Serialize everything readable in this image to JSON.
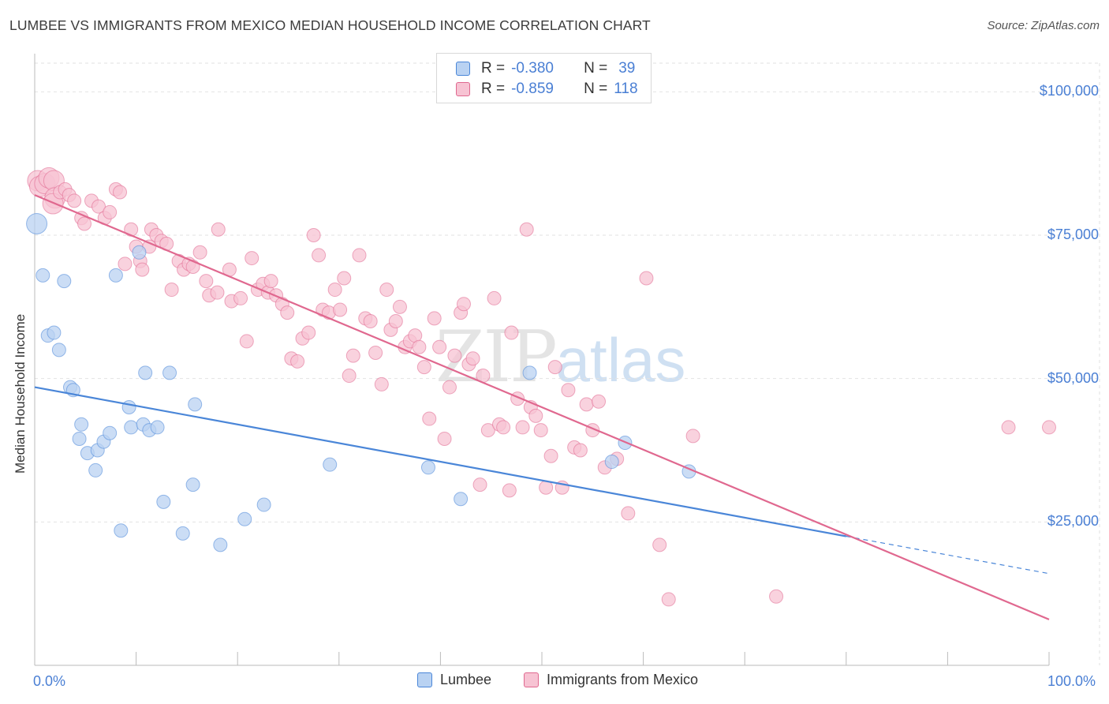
{
  "title": "LUMBEE VS IMMIGRANTS FROM MEXICO MEDIAN HOUSEHOLD INCOME CORRELATION CHART",
  "source": "Source: ZipAtlas.com",
  "watermark": {
    "zip": "ZIP",
    "atlas": "atlas"
  },
  "colors": {
    "lumbee": "#4a86d8",
    "lumbee_fill": "#b9d2f2",
    "mexico": "#e0688f",
    "mexico_fill": "#f7c3d3",
    "tick_text": "#4a7fd4"
  },
  "legend": {
    "rows": [
      {
        "r_label": "R =",
        "r_value": "-0.380",
        "n_label": "N =",
        "n_value": "39"
      },
      {
        "r_label": "R =",
        "r_value": "-0.859",
        "n_label": "N =",
        "n_value": "118"
      }
    ]
  },
  "bottom_legend": [
    "Lumbee",
    "Immigrants from Mexico"
  ],
  "chart_data": {
    "type": "scatter",
    "title": "LUMBEE VS IMMIGRANTS FROM MEXICO MEDIAN HOUSEHOLD INCOME CORRELATION CHART",
    "xlabel": "",
    "ylabel": "Median Household Income",
    "xlim": [
      0,
      100
    ],
    "ylim": [
      0,
      105000
    ],
    "x_tick_labels": [
      "0.0%",
      "100.0%"
    ],
    "y_ticks": [
      25000,
      50000,
      75000,
      100000
    ],
    "y_tick_labels": [
      "$25,000",
      "$50,000",
      "$75,000",
      "$100,000"
    ],
    "grid": true,
    "legend_position": "top-center",
    "series": [
      {
        "name": "Lumbee",
        "points": [
          [
            0.2,
            77000
          ],
          [
            0.8,
            68000
          ],
          [
            2.9,
            67000
          ],
          [
            1.3,
            57500
          ],
          [
            1.9,
            58000
          ],
          [
            2.4,
            55000
          ],
          [
            3.5,
            48500
          ],
          [
            3.8,
            48000
          ],
          [
            4.6,
            42000
          ],
          [
            4.4,
            39500
          ],
          [
            5.2,
            37000
          ],
          [
            6.2,
            37500
          ],
          [
            6.0,
            34000
          ],
          [
            6.8,
            39000
          ],
          [
            7.4,
            40500
          ],
          [
            8.0,
            68000
          ],
          [
            8.5,
            23500
          ],
          [
            9.3,
            45000
          ],
          [
            9.5,
            41500
          ],
          [
            10.3,
            72000
          ],
          [
            10.9,
            51000
          ],
          [
            10.7,
            42000
          ],
          [
            11.3,
            41000
          ],
          [
            12.1,
            41500
          ],
          [
            12.7,
            28500
          ],
          [
            13.3,
            51000
          ],
          [
            14.6,
            23000
          ],
          [
            15.8,
            45500
          ],
          [
            15.6,
            31500
          ],
          [
            18.3,
            21000
          ],
          [
            20.7,
            25500
          ],
          [
            22.6,
            28000
          ],
          [
            29.1,
            35000
          ],
          [
            38.8,
            34500
          ],
          [
            42.0,
            29000
          ],
          [
            48.8,
            51000
          ],
          [
            56.9,
            35500
          ],
          [
            58.2,
            38800
          ],
          [
            64.5,
            33800
          ]
        ]
      },
      {
        "name": "Immigrants from Mexico",
        "points": [
          [
            0.3,
            84500
          ],
          [
            0.5,
            83500
          ],
          [
            1.0,
            84000
          ],
          [
            1.4,
            85000
          ],
          [
            1.9,
            84500
          ],
          [
            2.0,
            81500
          ],
          [
            1.8,
            80500
          ],
          [
            2.5,
            82500
          ],
          [
            3.0,
            83000
          ],
          [
            3.4,
            82000
          ],
          [
            3.9,
            81000
          ],
          [
            4.6,
            78000
          ],
          [
            4.9,
            77000
          ],
          [
            5.6,
            81000
          ],
          [
            6.3,
            80000
          ],
          [
            6.9,
            78000
          ],
          [
            7.4,
            79000
          ],
          [
            8.0,
            83000
          ],
          [
            8.4,
            82500
          ],
          [
            8.9,
            70000
          ],
          [
            9.5,
            76000
          ],
          [
            10.0,
            73000
          ],
          [
            10.4,
            70500
          ],
          [
            10.6,
            69000
          ],
          [
            11.3,
            73000
          ],
          [
            11.5,
            76000
          ],
          [
            12.0,
            75000
          ],
          [
            12.5,
            74000
          ],
          [
            13.0,
            73500
          ],
          [
            13.5,
            65500
          ],
          [
            14.2,
            70500
          ],
          [
            14.7,
            69000
          ],
          [
            15.2,
            70000
          ],
          [
            15.6,
            69500
          ],
          [
            16.3,
            72000
          ],
          [
            16.9,
            67000
          ],
          [
            17.2,
            64500
          ],
          [
            18.0,
            65000
          ],
          [
            18.1,
            76000
          ],
          [
            19.2,
            69000
          ],
          [
            19.4,
            63500
          ],
          [
            20.3,
            64000
          ],
          [
            20.9,
            56500
          ],
          [
            21.4,
            71000
          ],
          [
            22.0,
            65500
          ],
          [
            22.5,
            66500
          ],
          [
            23.0,
            65000
          ],
          [
            23.3,
            67000
          ],
          [
            23.8,
            64500
          ],
          [
            24.4,
            63000
          ],
          [
            24.9,
            61500
          ],
          [
            25.3,
            53500
          ],
          [
            25.9,
            53000
          ],
          [
            26.4,
            57000
          ],
          [
            27.0,
            58000
          ],
          [
            27.5,
            75000
          ],
          [
            28.0,
            71500
          ],
          [
            28.4,
            62000
          ],
          [
            29.0,
            61500
          ],
          [
            29.6,
            65500
          ],
          [
            30.1,
            62000
          ],
          [
            30.5,
            67500
          ],
          [
            31.0,
            50500
          ],
          [
            31.4,
            54000
          ],
          [
            32.0,
            71500
          ],
          [
            32.6,
            60500
          ],
          [
            33.1,
            60000
          ],
          [
            33.6,
            54500
          ],
          [
            34.2,
            49000
          ],
          [
            34.7,
            65500
          ],
          [
            35.1,
            58500
          ],
          [
            35.6,
            60000
          ],
          [
            36.0,
            62500
          ],
          [
            36.5,
            55500
          ],
          [
            37.0,
            56500
          ],
          [
            37.5,
            57500
          ],
          [
            37.9,
            55500
          ],
          [
            38.4,
            52000
          ],
          [
            38.9,
            43000
          ],
          [
            39.4,
            60500
          ],
          [
            39.9,
            55500
          ],
          [
            40.4,
            39500
          ],
          [
            40.9,
            48500
          ],
          [
            41.4,
            54000
          ],
          [
            42.0,
            61500
          ],
          [
            42.3,
            63000
          ],
          [
            42.8,
            52500
          ],
          [
            43.2,
            53500
          ],
          [
            43.9,
            31500
          ],
          [
            44.2,
            50500
          ],
          [
            44.7,
            41000
          ],
          [
            45.3,
            64000
          ],
          [
            45.8,
            42000
          ],
          [
            46.2,
            41500
          ],
          [
            46.8,
            30500
          ],
          [
            47.0,
            58000
          ],
          [
            47.6,
            46500
          ],
          [
            48.1,
            41500
          ],
          [
            48.5,
            76000
          ],
          [
            48.9,
            45000
          ],
          [
            49.4,
            43500
          ],
          [
            49.9,
            41000
          ],
          [
            50.4,
            31000
          ],
          [
            50.9,
            36500
          ],
          [
            51.3,
            52000
          ],
          [
            52.0,
            31000
          ],
          [
            52.6,
            48000
          ],
          [
            53.2,
            38000
          ],
          [
            53.8,
            37500
          ],
          [
            54.4,
            45500
          ],
          [
            55.0,
            41000
          ],
          [
            55.6,
            46000
          ],
          [
            56.2,
            34500
          ],
          [
            57.4,
            36000
          ],
          [
            58.5,
            26500
          ],
          [
            60.3,
            67500
          ],
          [
            61.6,
            21000
          ],
          [
            62.5,
            11500
          ],
          [
            64.9,
            40000
          ],
          [
            73.1,
            12000
          ],
          [
            100.0,
            41500
          ],
          [
            96.0,
            41500
          ]
        ]
      }
    ],
    "trendlines": [
      {
        "series": "Lumbee",
        "x": [
          0,
          80,
          100
        ],
        "y": [
          48500,
          22500,
          16000
        ],
        "dashed_from_x": 80
      },
      {
        "series": "Immigrants from Mexico",
        "x": [
          0,
          100
        ],
        "y": [
          82000,
          8000
        ]
      }
    ]
  }
}
